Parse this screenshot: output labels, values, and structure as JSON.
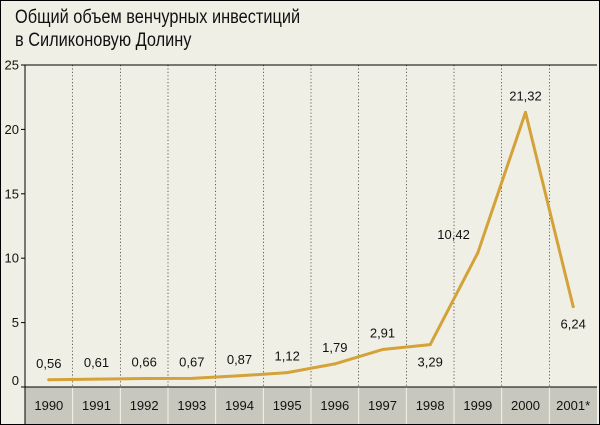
{
  "chart_data": {
    "type": "line",
    "title_lines": [
      "Общий объем венчурных инвестиций",
      "в Силиконовую Долину"
    ],
    "x": [
      "1990",
      "1991",
      "1992",
      "1993",
      "1994",
      "1995",
      "1996",
      "1997",
      "1998",
      "1999",
      "2000",
      "2001*"
    ],
    "values": [
      0.56,
      0.61,
      0.66,
      0.67,
      0.87,
      1.12,
      1.79,
      2.91,
      3.29,
      10.42,
      21.32,
      6.24
    ],
    "labels": [
      "0,56",
      "0,61",
      "0,66",
      "0,67",
      "0,87",
      "1,12",
      "1,79",
      "2,91",
      "3,29",
      "10,42",
      "21,32",
      "6,24"
    ],
    "label_positions": [
      "above",
      "above",
      "above",
      "above",
      "above",
      "above",
      "above",
      "above",
      "below",
      "left",
      "above",
      "below"
    ],
    "y_ticks": [
      "0",
      "5",
      "10",
      "15",
      "20",
      "25"
    ],
    "ylim": [
      0,
      25
    ],
    "grid": "vertical",
    "colors": {
      "line": "#d4a239",
      "background": "#f0efe6",
      "axis_band": "#c8c7bd",
      "grid": "#000000"
    }
  }
}
